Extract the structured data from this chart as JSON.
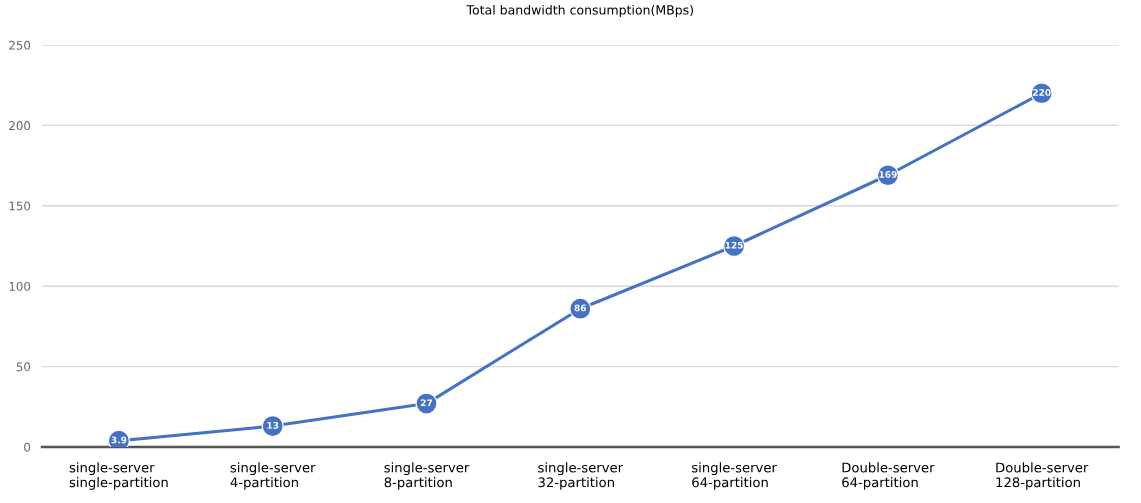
{
  "chart_data": {
    "type": "line",
    "title": "Total bandwidth consumption(MBps)",
    "categories": [
      "single-server\nsingle-partition",
      "single-server\n4-partition",
      "single-server\n8-partition",
      "single-server\n32-partition",
      "single-server\n64-partition",
      "Double-server\n64-partition",
      "Double-server\n128-partition"
    ],
    "series": [
      {
        "color": "#4472c4",
        "values": [
          3.9,
          13,
          27,
          86,
          125,
          169,
          220
        ]
      }
    ],
    "ylim": [
      0,
      250
    ],
    "yticks": [
      0,
      50,
      100,
      150,
      200,
      250
    ],
    "grid": "y",
    "marker": "circle",
    "line_style": "solid",
    "data_labels": true
  }
}
